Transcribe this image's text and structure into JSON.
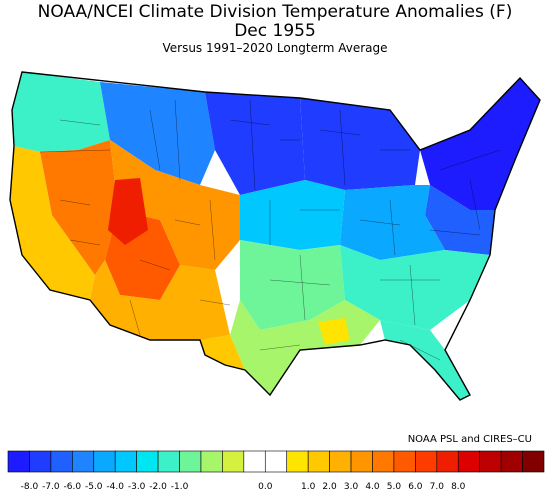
{
  "header": {
    "title": "NOAA/NCEI Climate Division Temperature Anomalies (F)",
    "date": "Dec 1955",
    "subtitle": "Versus 1991–2020 Longterm Average"
  },
  "credit": "NOAA PSL and CIRES–CU",
  "legend": {
    "bins": [
      {
        "color": "#1c1cff"
      },
      {
        "color": "#1f3cff"
      },
      {
        "color": "#2060ff"
      },
      {
        "color": "#1e84ff"
      },
      {
        "color": "#0aa8ff"
      },
      {
        "color": "#00c8ff"
      },
      {
        "color": "#00e6f0"
      },
      {
        "color": "#3cf0c8"
      },
      {
        "color": "#6ef59a"
      },
      {
        "color": "#a6f56a"
      },
      {
        "color": "#d6f040"
      },
      {
        "color": "#ffffff"
      },
      {
        "color": "#ffffff"
      },
      {
        "color": "#ffe400"
      },
      {
        "color": "#ffc800"
      },
      {
        "color": "#ffb000"
      },
      {
        "color": "#ff9600"
      },
      {
        "color": "#ff7800"
      },
      {
        "color": "#ff5a00"
      },
      {
        "color": "#ff3c00"
      },
      {
        "color": "#f01e00"
      },
      {
        "color": "#dc0000"
      },
      {
        "color": "#be0000"
      },
      {
        "color": "#a00000"
      },
      {
        "color": "#800000"
      }
    ],
    "labels": [
      "-8.0",
      "-7.0",
      "-6.0",
      "-5.0",
      "-4.0",
      "-3.0",
      "-2.0",
      "-1.0",
      "0.0",
      "1.0",
      "2.0",
      "3.0",
      "4.0",
      "5.0",
      "6.0",
      "7.0",
      "8.0"
    ]
  },
  "regions": [
    {
      "name": "pacific-northwest",
      "color": "#3cf0c8"
    },
    {
      "name": "northern-rockies",
      "color": "#1e84ff"
    },
    {
      "name": "northern-plains",
      "color": "#1f3cff"
    },
    {
      "name": "upper-midwest",
      "color": "#1f3cff"
    },
    {
      "name": "northeast",
      "color": "#1c1cff"
    },
    {
      "name": "mid-atlantic",
      "color": "#2060ff"
    },
    {
      "name": "ohio-valley",
      "color": "#0aa8ff"
    },
    {
      "name": "central-plains",
      "color": "#00c8ff"
    },
    {
      "name": "southern-plains",
      "color": "#6ef59a"
    },
    {
      "name": "southeast",
      "color": "#3cf0c8"
    },
    {
      "name": "gulf-coast",
      "color": "#a6f56a"
    },
    {
      "name": "florida",
      "color": "#3cf0c8"
    },
    {
      "name": "california",
      "color": "#ffc800"
    },
    {
      "name": "great-basin",
      "color": "#ff7800"
    },
    {
      "name": "four-corners",
      "color": "#ff5a00"
    },
    {
      "name": "southwest",
      "color": "#ffb000"
    },
    {
      "name": "central-rockies",
      "color": "#ff9600"
    },
    {
      "name": "utah-core",
      "color": "#f01e00"
    },
    {
      "name": "west-texas",
      "color": "#ffc800"
    },
    {
      "name": "louisiana-patch",
      "color": "#ffe400"
    }
  ]
}
